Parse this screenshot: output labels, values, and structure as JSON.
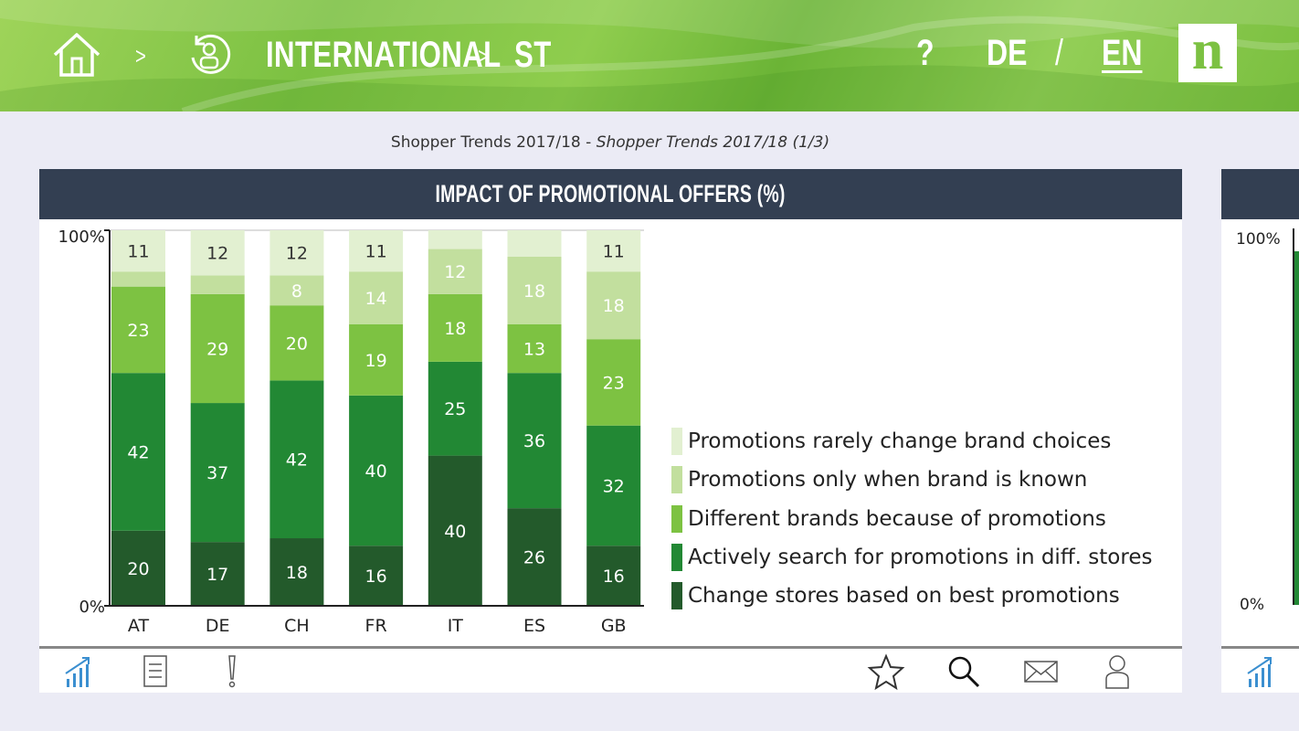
{
  "header": {
    "breadcrumb_sep_1": ">",
    "breadcrumb_section": "INTERNATIONAL",
    "breadcrumb_sep_2": ">",
    "breadcrumb_page": "ST",
    "help": "?",
    "lang_de": "DE",
    "lang_sep": "/",
    "lang_en": "EN",
    "logo": "n",
    "icons": [
      "home-icon",
      "user-circle-icon"
    ]
  },
  "subtitle": {
    "main": "Shopper Trends 2017/18",
    "dash": " - ",
    "italic": "Shopper Trends 2017/18 (1/3)"
  },
  "card": {
    "title": "IMPACT OF PROMOTIONAL OFFERS (%)"
  },
  "chart_data": {
    "type": "bar",
    "stacked": true,
    "title": "IMPACT OF PROMOTIONAL OFFERS (%)",
    "categories": [
      "AT",
      "DE",
      "CH",
      "FR",
      "IT",
      "ES",
      "GB"
    ],
    "yticks": [
      "100%",
      "0%"
    ],
    "ylim": [
      0,
      100
    ],
    "legend_position": "right",
    "series": [
      {
        "name": "Change stores based on best promotions",
        "color": "#235a2b",
        "values": [
          20,
          17,
          18,
          16,
          40,
          26,
          16
        ],
        "labels": [
          "20",
          "17",
          "18",
          "16",
          "40",
          "26",
          "16"
        ]
      },
      {
        "name": "Actively search for promotions in diff. stores",
        "color": "#228834",
        "values": [
          42,
          37,
          42,
          40,
          25,
          36,
          32
        ],
        "labels": [
          "42",
          "37",
          "42",
          "40",
          "25",
          "36",
          "32"
        ]
      },
      {
        "name": "Different brands because of promotions",
        "color": "#7dc242",
        "values": [
          23,
          29,
          20,
          19,
          18,
          13,
          23
        ],
        "labels": [
          "23",
          "29",
          "20",
          "19",
          "18",
          "13",
          "23"
        ]
      },
      {
        "name": "Promotions only when brand is known",
        "color": "#c2df9e",
        "values": [
          4,
          5,
          8,
          14,
          12,
          18,
          18
        ],
        "labels": [
          "",
          "",
          "8",
          "14",
          "12",
          "18",
          "18"
        ]
      },
      {
        "name": "Promotions rarely change brand choices",
        "color": "#e2f0d1",
        "values": [
          11,
          12,
          12,
          11,
          5,
          7,
          11
        ],
        "labels": [
          "11",
          "12",
          "12",
          "11",
          "",
          "",
          "11"
        ]
      }
    ]
  },
  "toolbar": {
    "left": [
      "chart-icon",
      "document-icon",
      "exclamation-icon"
    ],
    "right": [
      "star-icon",
      "search-icon",
      "mail-icon",
      "user-icon"
    ]
  },
  "card2": {
    "ytick_top": "100%",
    "ytick_bottom": "0%"
  }
}
